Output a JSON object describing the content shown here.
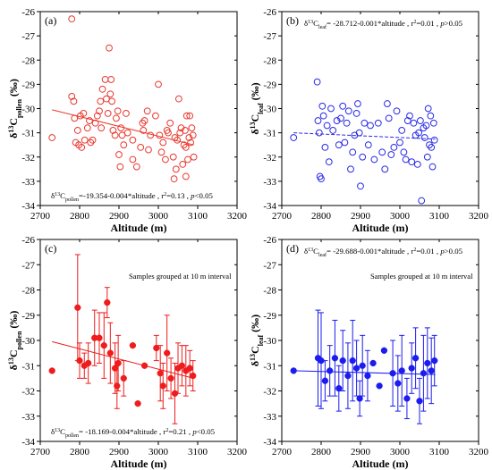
{
  "chart_data": [
    {
      "id": "a",
      "type": "scatter",
      "panel_label": "(a)",
      "xlabel": "Altitude (m)",
      "ylabel": {
        "base": "δ",
        "sup": "13",
        "mid": "C",
        "sub": "pollen",
        "tail": " (‰)"
      },
      "xlim": [
        2700,
        3200
      ],
      "ylim": [
        -34,
        -26
      ],
      "xticks": [
        2700,
        2800,
        2900,
        3000,
        3100,
        3200
      ],
      "yticks": [
        -34,
        -33,
        -32,
        -31,
        -30,
        -29,
        -28,
        -27,
        -26
      ],
      "marker": "open-circle",
      "color": "#e8392f",
      "points": [
        [
          2730,
          -31.2
        ],
        [
          2780,
          -26.3
        ],
        [
          2780,
          -29.5
        ],
        [
          2785,
          -29.7
        ],
        [
          2787,
          -30.4
        ],
        [
          2790,
          -31.4
        ],
        [
          2795,
          -30.9
        ],
        [
          2798,
          -31.5
        ],
        [
          2802,
          -30.3
        ],
        [
          2805,
          -31.6
        ],
        [
          2810,
          -30.2
        ],
        [
          2813,
          -31.3
        ],
        [
          2820,
          -30.8
        ],
        [
          2825,
          -30.5
        ],
        [
          2828,
          -31.4
        ],
        [
          2833,
          -31.3
        ],
        [
          2840,
          -30.6
        ],
        [
          2845,
          -30.3
        ],
        [
          2850,
          -30.1
        ],
        [
          2853,
          -29.7
        ],
        [
          2855,
          -30.8
        ],
        [
          2858,
          -29.2
        ],
        [
          2865,
          -28.8
        ],
        [
          2868,
          -29.6
        ],
        [
          2872,
          -30.2
        ],
        [
          2875,
          -27.5
        ],
        [
          2878,
          -29.4
        ],
        [
          2880,
          -28.8
        ],
        [
          2882,
          -29.7
        ],
        [
          2885,
          -30.9
        ],
        [
          2890,
          -31.1
        ],
        [
          2893,
          -30.4
        ],
        [
          2897,
          -30.1
        ],
        [
          2900,
          -31.9
        ],
        [
          2903,
          -32.4
        ],
        [
          2905,
          -30.8
        ],
        [
          2908,
          -31.1
        ],
        [
          2912,
          -31.5
        ],
        [
          2918,
          -30.2
        ],
        [
          2922,
          -31.0
        ],
        [
          2935,
          -31.3
        ],
        [
          2945,
          -32.4
        ],
        [
          2955,
          -31.6
        ],
        [
          2962,
          -30.9
        ],
        [
          2965,
          -30.5
        ],
        [
          2972,
          -30.1
        ],
        [
          2975,
          -31.7
        ],
        [
          2980,
          -31.1
        ],
        [
          2993,
          -30.3
        ],
        [
          3000,
          -29.0
        ],
        [
          3003,
          -31.1
        ],
        [
          3008,
          -31.8
        ],
        [
          3012,
          -31.4
        ],
        [
          3018,
          -32.1
        ],
        [
          3022,
          -30.9
        ],
        [
          3025,
          -31.0
        ],
        [
          3030,
          -30.6
        ],
        [
          3038,
          -32.0
        ],
        [
          3042,
          -31.2
        ],
        [
          3045,
          -32.5
        ],
        [
          3048,
          -31.3
        ],
        [
          3052,
          -29.6
        ],
        [
          3055,
          -31.0
        ],
        [
          3058,
          -30.8
        ],
        [
          3062,
          -32.3
        ],
        [
          3065,
          -31.5
        ],
        [
          3068,
          -30.9
        ],
        [
          3070,
          -31.6
        ],
        [
          3072,
          -30.3
        ],
        [
          3075,
          -32.1
        ],
        [
          3078,
          -31.2
        ],
        [
          3080,
          -30.3
        ],
        [
          3082,
          -31.4
        ],
        [
          3085,
          -30.8
        ],
        [
          3088,
          -31.1
        ],
        [
          3090,
          -32.0
        ],
        [
          3070,
          -32.8
        ],
        [
          3040,
          -32.9
        ],
        [
          2960,
          -30.6
        ],
        [
          2935,
          -32.1
        ]
      ],
      "fit": {
        "x": [
          2730,
          3090
        ],
        "y": [
          -30.05,
          -31.5
        ],
        "dashed": false
      },
      "annotation": {
        "position": "bottom",
        "prefix": "δ",
        "sup": "13",
        "mid": "C",
        "sub": "pollen",
        "text": "=-19.354-0.004*altitude , r",
        "r2sup": "2",
        "tail": "=0.13 , ",
        "p": "p",
        "ptail": "<0.05"
      }
    },
    {
      "id": "b",
      "type": "scatter",
      "panel_label": "(b)",
      "xlabel": "Altitude (m)",
      "ylabel": {
        "base": "δ",
        "sup": "13",
        "mid": "C",
        "sub": "leaf",
        "tail": " (‰)"
      },
      "xlim": [
        2700,
        3200
      ],
      "ylim": [
        -34,
        -26
      ],
      "xticks": [
        2700,
        2800,
        2900,
        3000,
        3100,
        3200
      ],
      "yticks": [
        -34,
        -33,
        -32,
        -31,
        -30,
        -29,
        -28,
        -27,
        -26
      ],
      "marker": "open-circle",
      "color": "#2a2ae8",
      "points": [
        [
          2730,
          -31.2
        ],
        [
          2790,
          -28.9
        ],
        [
          2792,
          -30.5
        ],
        [
          2795,
          -31.0
        ],
        [
          2797,
          -32.8
        ],
        [
          2800,
          -32.9
        ],
        [
          2803,
          -29.9
        ],
        [
          2806,
          -30.3
        ],
        [
          2810,
          -31.6
        ],
        [
          2815,
          -30.7
        ],
        [
          2820,
          -32.2
        ],
        [
          2825,
          -30.0
        ],
        [
          2830,
          -30.9
        ],
        [
          2840,
          -30.5
        ],
        [
          2845,
          -31.5
        ],
        [
          2850,
          -30.4
        ],
        [
          2855,
          -29.9
        ],
        [
          2860,
          -31.4
        ],
        [
          2865,
          -30.6
        ],
        [
          2870,
          -30.1
        ],
        [
          2875,
          -32.5
        ],
        [
          2880,
          -31.8
        ],
        [
          2885,
          -31.1
        ],
        [
          2890,
          -30.2
        ],
        [
          2893,
          -29.8
        ],
        [
          2897,
          -31.0
        ],
        [
          2900,
          -33.2
        ],
        [
          2905,
          -32.0
        ],
        [
          2910,
          -30.6
        ],
        [
          2920,
          -31.5
        ],
        [
          2925,
          -30.7
        ],
        [
          2935,
          -32.1
        ],
        [
          2945,
          -30.6
        ],
        [
          2955,
          -31.8
        ],
        [
          2962,
          -32.5
        ],
        [
          2968,
          -29.8
        ],
        [
          2972,
          -30.4
        ],
        [
          2978,
          -31.9
        ],
        [
          2985,
          -31.6
        ],
        [
          2992,
          -30.1
        ],
        [
          3000,
          -31.4
        ],
        [
          3005,
          -30.9
        ],
        [
          3010,
          -31.8
        ],
        [
          3015,
          -32.1
        ],
        [
          3020,
          -30.5
        ],
        [
          3025,
          -30.3
        ],
        [
          3030,
          -32.2
        ],
        [
          3035,
          -30.6
        ],
        [
          3040,
          -31.1
        ],
        [
          3045,
          -32.3
        ],
        [
          3048,
          -31.0
        ],
        [
          3052,
          -30.5
        ],
        [
          3055,
          -33.8
        ],
        [
          3060,
          -30.8
        ],
        [
          3063,
          -31.2
        ],
        [
          3067,
          -30.7
        ],
        [
          3070,
          -32.0
        ],
        [
          3072,
          -30.0
        ],
        [
          3075,
          -31.5
        ],
        [
          3078,
          -30.3
        ],
        [
          3080,
          -31.6
        ],
        [
          3083,
          -32.4
        ],
        [
          3086,
          -30.6
        ],
        [
          3088,
          -31.3
        ]
      ],
      "fit": {
        "x": [
          2730,
          3090
        ],
        "y": [
          -31.0,
          -31.26
        ],
        "dashed": true
      },
      "annotation": {
        "position": "top",
        "prefix": "δ",
        "sup": "13",
        "mid": "C",
        "sub": "leaf",
        "text": "= -28.712-0.001*altitude , r",
        "r2sup": "2",
        "tail": "=0.01 , ",
        "p": "p",
        "ptail": ">0.05"
      }
    },
    {
      "id": "c",
      "type": "scatter",
      "panel_label": "(c)",
      "xlabel": "Altitude (m)",
      "ylabel": {
        "base": "δ",
        "sup": "13",
        "mid": "C",
        "sub": "pollen",
        "tail": " (‰)"
      },
      "xlim": [
        2700,
        3200
      ],
      "ylim": [
        -34,
        -26
      ],
      "xticks": [
        2700,
        2800,
        2900,
        3000,
        3100,
        3200
      ],
      "yticks": [
        -34,
        -33,
        -32,
        -31,
        -30,
        -29,
        -28,
        -27,
        -26
      ],
      "marker": "filled-circle",
      "color": "#ee1c1c",
      "note": "Samples grouped at 10 m interval",
      "points": [
        {
          "x": 2730,
          "y": -31.2,
          "err": 0
        },
        {
          "x": 2795,
          "y": -28.7,
          "err": 2.1
        },
        {
          "x": 2800,
          "y": -30.8,
          "err": 0.7
        },
        {
          "x": 2812,
          "y": -31.0,
          "err": 0.5
        },
        {
          "x": 2822,
          "y": -30.9,
          "err": 0.8
        },
        {
          "x": 2838,
          "y": -29.9,
          "err": 1.1
        },
        {
          "x": 2850,
          "y": -29.9,
          "err": 1.0
        },
        {
          "x": 2862,
          "y": -30.2,
          "err": 1.3
        },
        {
          "x": 2870,
          "y": -28.5,
          "err": 0.6
        },
        {
          "x": 2878,
          "y": -30.5,
          "err": 1.2
        },
        {
          "x": 2890,
          "y": -31.1,
          "err": 1.0
        },
        {
          "x": 2895,
          "y": -31.8,
          "err": 0.9
        },
        {
          "x": 2898,
          "y": -30.9,
          "err": 1.1
        },
        {
          "x": 2912,
          "y": -31.5,
          "err": 0.7
        },
        {
          "x": 2935,
          "y": -30.2,
          "err": 0
        },
        {
          "x": 2948,
          "y": -32.5,
          "err": 0
        },
        {
          "x": 2965,
          "y": -31.0,
          "err": 0
        },
        {
          "x": 2995,
          "y": -30.3,
          "err": 0.5
        },
        {
          "x": 3005,
          "y": -31.3,
          "err": 1.1
        },
        {
          "x": 3012,
          "y": -31.8,
          "err": 0.9
        },
        {
          "x": 3022,
          "y": -30.5,
          "err": 1.5
        },
        {
          "x": 3032,
          "y": -31.5,
          "err": 0.8
        },
        {
          "x": 3042,
          "y": -32.1,
          "err": 1.2
        },
        {
          "x": 3050,
          "y": -31.1,
          "err": 1.0
        },
        {
          "x": 3060,
          "y": -31.0,
          "err": 0.8
        },
        {
          "x": 3070,
          "y": -31.2,
          "err": 1.0
        },
        {
          "x": 3080,
          "y": -31.1,
          "err": 0.7
        },
        {
          "x": 3088,
          "y": -31.4,
          "err": 0.6
        }
      ],
      "fit": {
        "x": [
          2730,
          3090
        ],
        "y": [
          -30.05,
          -31.5
        ],
        "dashed": false
      },
      "annotation": {
        "position": "bottom",
        "prefix": "δ",
        "sup": "13",
        "mid": "C",
        "sub": "pollen",
        "text": "= -18.169-0.004*altitude , r",
        "r2sup": "2",
        "tail": "=0.21 , ",
        "p": "p",
        "ptail": "<0.05"
      }
    },
    {
      "id": "d",
      "type": "scatter",
      "panel_label": "(d)",
      "xlabel": "Altitude (m)",
      "ylabel": {
        "base": "δ",
        "sup": "13",
        "mid": "C",
        "sub": "leaf",
        "tail": " (‰)"
      },
      "xlim": [
        2700,
        3200
      ],
      "ylim": [
        -34,
        -26
      ],
      "xticks": [
        2700,
        2800,
        2900,
        3000,
        3100,
        3200
      ],
      "yticks": [
        -34,
        -33,
        -32,
        -31,
        -30,
        -29,
        -28,
        -27,
        -26
      ],
      "marker": "filled-circle",
      "color": "#1c1cee",
      "note": "Samples grouped at 10 m interval",
      "points": [
        {
          "x": 2730,
          "y": -31.2,
          "err": 0
        },
        {
          "x": 2792,
          "y": -30.7,
          "err": 1.9
        },
        {
          "x": 2800,
          "y": -30.8,
          "err": 1.9
        },
        {
          "x": 2810,
          "y": -31.6,
          "err": 0.8
        },
        {
          "x": 2822,
          "y": -31.2,
          "err": 1.0
        },
        {
          "x": 2835,
          "y": -30.7,
          "err": 1.5
        },
        {
          "x": 2845,
          "y": -31.9,
          "err": 0.9
        },
        {
          "x": 2855,
          "y": -30.8,
          "err": 1.2
        },
        {
          "x": 2868,
          "y": -31.4,
          "err": 1.3
        },
        {
          "x": 2880,
          "y": -30.8,
          "err": 1.6
        },
        {
          "x": 2890,
          "y": -31.1,
          "err": 1.1
        },
        {
          "x": 2898,
          "y": -32.3,
          "err": 0.7
        },
        {
          "x": 2905,
          "y": -31.0,
          "err": 1.2
        },
        {
          "x": 2918,
          "y": -31.4,
          "err": 1.0
        },
        {
          "x": 2932,
          "y": -30.9,
          "err": 0
        },
        {
          "x": 2948,
          "y": -31.8,
          "err": 0
        },
        {
          "x": 2960,
          "y": -30.4,
          "err": 0
        },
        {
          "x": 2982,
          "y": -31.3,
          "err": 1.3
        },
        {
          "x": 2995,
          "y": -31.7,
          "err": 1.1
        },
        {
          "x": 3005,
          "y": -31.2,
          "err": 1.4
        },
        {
          "x": 3018,
          "y": -32.3,
          "err": 0.8
        },
        {
          "x": 3030,
          "y": -31.1,
          "err": 1.0
        },
        {
          "x": 3040,
          "y": -30.7,
          "err": 1.2
        },
        {
          "x": 3050,
          "y": -32.4,
          "err": 0.9
        },
        {
          "x": 3060,
          "y": -31.3,
          "err": 1.5
        },
        {
          "x": 3070,
          "y": -30.9,
          "err": 1.4
        },
        {
          "x": 3080,
          "y": -31.2,
          "err": 1.3
        },
        {
          "x": 3088,
          "y": -30.8,
          "err": 1.0
        }
      ],
      "fit": {
        "x": [
          2730,
          3090
        ],
        "y": [
          -31.2,
          -31.35
        ],
        "dashed": false
      },
      "annotation": {
        "position": "top",
        "prefix": "δ",
        "sup": "13",
        "mid": "C",
        "sub": "leaf",
        "text": "= -29.688-0.001*altitude , r",
        "r2sup": "2",
        "tail": "=0.01 , ",
        "p": "p",
        "ptail": ">0.05"
      }
    }
  ]
}
